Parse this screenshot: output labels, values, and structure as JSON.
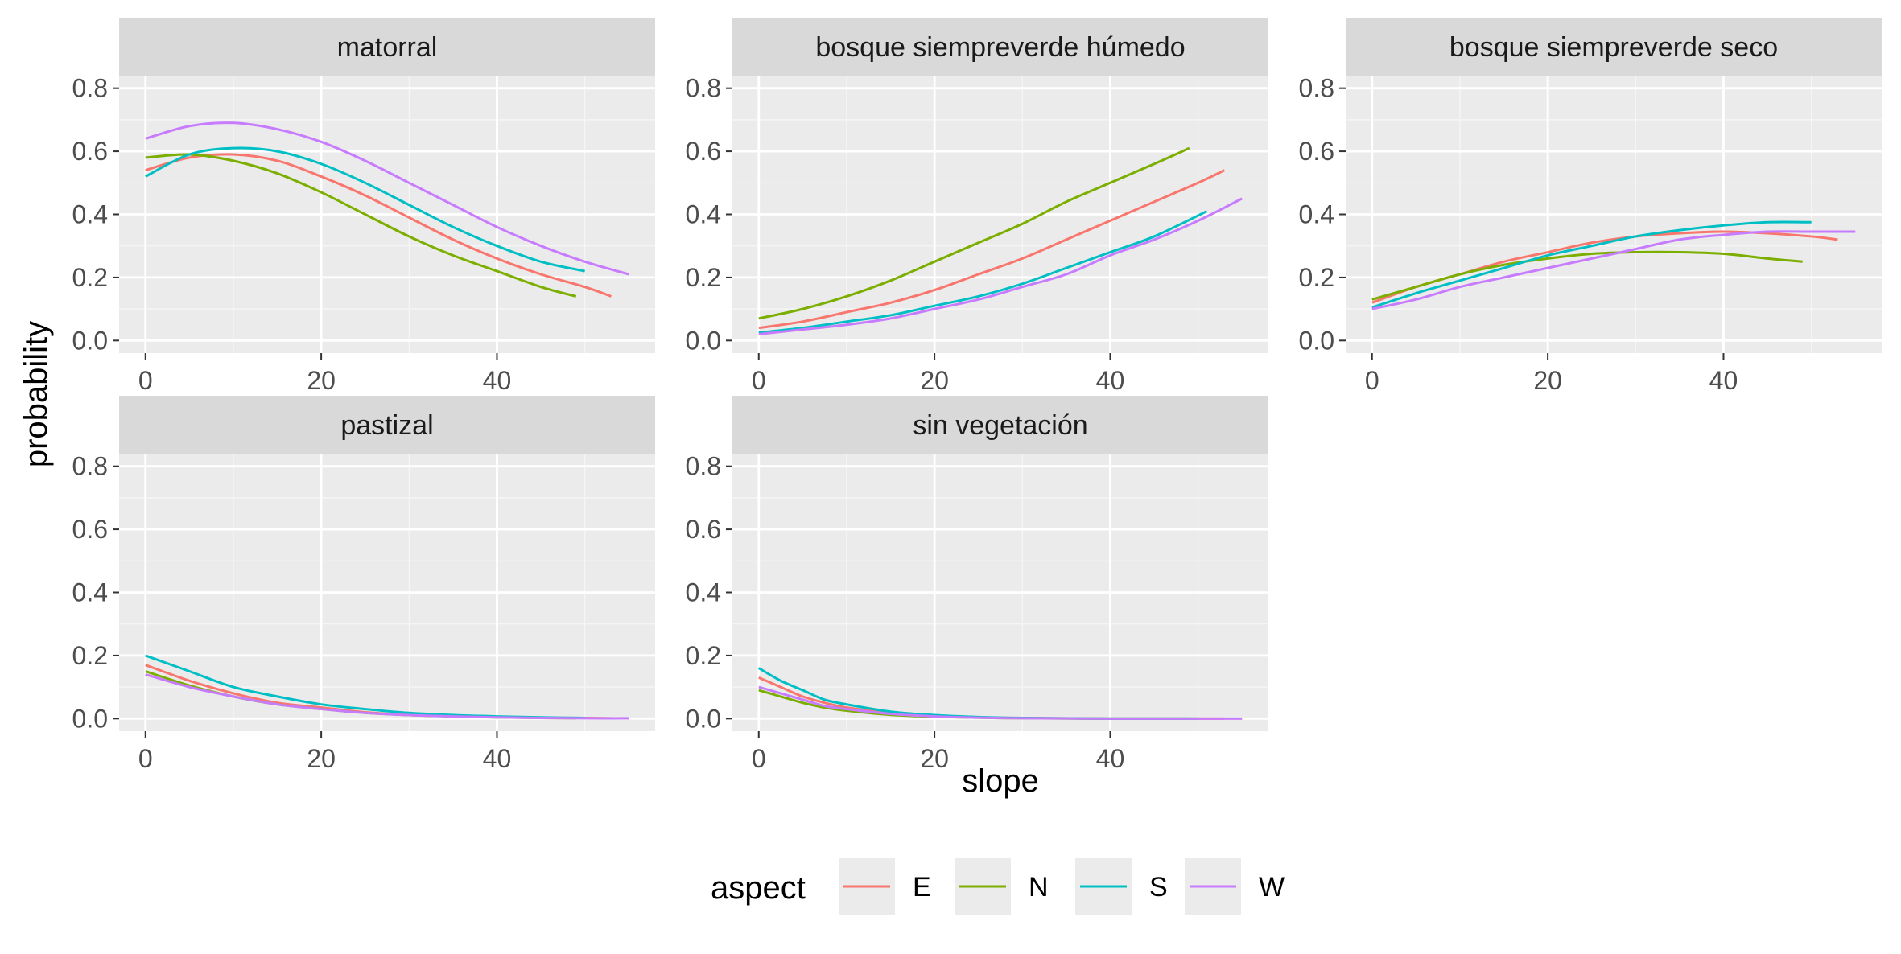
{
  "chart_data": {
    "type": "line",
    "xlabel": "slope",
    "ylabel": "probability",
    "xlim": [
      -3,
      58
    ],
    "ylim": [
      -0.04,
      0.84
    ],
    "x_ticks": [
      0,
      20,
      40
    ],
    "x_tick_labels": [
      "0",
      "20",
      "40"
    ],
    "y_ticks": [
      0.0,
      0.2,
      0.4,
      0.6,
      0.8
    ],
    "y_tick_labels": [
      "0.0",
      "0.2",
      "0.4",
      "0.6",
      "0.8"
    ],
    "grid": true,
    "legend": {
      "title": "aspect",
      "position": "bottom",
      "entries": [
        {
          "label": "E",
          "color": "#F8766D"
        },
        {
          "label": "N",
          "color": "#7CAE00"
        },
        {
          "label": "S",
          "color": "#00BFC4"
        },
        {
          "label": "W",
          "color": "#C77CFF"
        }
      ]
    },
    "facets": [
      {
        "title": "matorral",
        "series": [
          {
            "name": "E",
            "x": [
              0,
              5,
              10,
              15,
              20,
              25,
              30,
              35,
              40,
              45,
              50,
              53
            ],
            "y": [
              0.54,
              0.58,
              0.59,
              0.57,
              0.52,
              0.46,
              0.39,
              0.32,
              0.26,
              0.21,
              0.17,
              0.14
            ]
          },
          {
            "name": "N",
            "x": [
              0,
              5,
              10,
              15,
              20,
              25,
              30,
              35,
              40,
              45,
              49
            ],
            "y": [
              0.58,
              0.59,
              0.57,
              0.53,
              0.47,
              0.4,
              0.33,
              0.27,
              0.22,
              0.17,
              0.14
            ]
          },
          {
            "name": "S",
            "x": [
              0,
              5,
              10,
              15,
              20,
              25,
              30,
              35,
              40,
              45,
              50
            ],
            "y": [
              0.52,
              0.59,
              0.61,
              0.6,
              0.56,
              0.5,
              0.43,
              0.36,
              0.3,
              0.25,
              0.22
            ]
          },
          {
            "name": "W",
            "x": [
              0,
              5,
              10,
              15,
              20,
              25,
              30,
              35,
              40,
              45,
              50,
              55
            ],
            "y": [
              0.64,
              0.68,
              0.69,
              0.67,
              0.63,
              0.57,
              0.5,
              0.43,
              0.36,
              0.3,
              0.25,
              0.21
            ]
          }
        ]
      },
      {
        "title": "bosque siempreverde húmedo",
        "series": [
          {
            "name": "E",
            "x": [
              0,
              5,
              10,
              15,
              20,
              25,
              30,
              35,
              40,
              45,
              50,
              53
            ],
            "y": [
              0.04,
              0.06,
              0.09,
              0.12,
              0.16,
              0.21,
              0.26,
              0.32,
              0.38,
              0.44,
              0.5,
              0.54
            ]
          },
          {
            "name": "N",
            "x": [
              0,
              5,
              10,
              15,
              20,
              25,
              30,
              35,
              40,
              45,
              49
            ],
            "y": [
              0.07,
              0.1,
              0.14,
              0.19,
              0.25,
              0.31,
              0.37,
              0.44,
              0.5,
              0.56,
              0.61
            ]
          },
          {
            "name": "S",
            "x": [
              0,
              5,
              10,
              15,
              20,
              25,
              30,
              35,
              40,
              45,
              51
            ],
            "y": [
              0.025,
              0.04,
              0.06,
              0.08,
              0.11,
              0.14,
              0.18,
              0.23,
              0.28,
              0.33,
              0.41
            ]
          },
          {
            "name": "W",
            "x": [
              0,
              5,
              10,
              15,
              20,
              25,
              30,
              35,
              40,
              45,
              50,
              55
            ],
            "y": [
              0.02,
              0.035,
              0.05,
              0.07,
              0.1,
              0.13,
              0.17,
              0.21,
              0.27,
              0.32,
              0.38,
              0.45
            ]
          }
        ]
      },
      {
        "title": "bosque siempreverde seco",
        "series": [
          {
            "name": "E",
            "x": [
              0,
              5,
              10,
              15,
              20,
              25,
              30,
              35,
              40,
              45,
              50,
              53
            ],
            "y": [
              0.12,
              0.17,
              0.21,
              0.25,
              0.28,
              0.31,
              0.33,
              0.34,
              0.345,
              0.34,
              0.33,
              0.32
            ]
          },
          {
            "name": "N",
            "x": [
              0,
              5,
              10,
              15,
              20,
              25,
              30,
              35,
              40,
              45,
              49
            ],
            "y": [
              0.13,
              0.17,
              0.21,
              0.24,
              0.26,
              0.275,
              0.28,
              0.28,
              0.275,
              0.26,
              0.25
            ]
          },
          {
            "name": "S",
            "x": [
              0,
              5,
              10,
              15,
              20,
              25,
              30,
              35,
              40,
              45,
              50
            ],
            "y": [
              0.105,
              0.15,
              0.19,
              0.23,
              0.27,
              0.3,
              0.33,
              0.35,
              0.365,
              0.375,
              0.375
            ]
          },
          {
            "name": "W",
            "x": [
              0,
              5,
              10,
              15,
              20,
              25,
              30,
              35,
              40,
              45,
              50,
              55
            ],
            "y": [
              0.1,
              0.13,
              0.17,
              0.2,
              0.23,
              0.26,
              0.29,
              0.32,
              0.335,
              0.345,
              0.345,
              0.345
            ]
          }
        ]
      },
      {
        "title": "pastizal",
        "series": [
          {
            "name": "E",
            "x": [
              0,
              5,
              10,
              15,
              20,
              25,
              30,
              35,
              40,
              45,
              50,
              53
            ],
            "y": [
              0.17,
              0.12,
              0.08,
              0.05,
              0.035,
              0.02,
              0.012,
              0.008,
              0.005,
              0.003,
              0.002,
              0.001
            ]
          },
          {
            "name": "N",
            "x": [
              0,
              5,
              10,
              15,
              20,
              25,
              30,
              35,
              40,
              45,
              49
            ],
            "y": [
              0.15,
              0.105,
              0.07,
              0.045,
              0.03,
              0.018,
              0.011,
              0.007,
              0.004,
              0.002,
              0.001
            ]
          },
          {
            "name": "S",
            "x": [
              0,
              5,
              10,
              15,
              20,
              25,
              30,
              35,
              40,
              45,
              50
            ],
            "y": [
              0.2,
              0.15,
              0.1,
              0.07,
              0.045,
              0.03,
              0.018,
              0.011,
              0.007,
              0.004,
              0.002
            ]
          },
          {
            "name": "W",
            "x": [
              0,
              5,
              10,
              15,
              20,
              25,
              30,
              35,
              40,
              45,
              50,
              55
            ],
            "y": [
              0.14,
              0.1,
              0.07,
              0.045,
              0.03,
              0.018,
              0.011,
              0.007,
              0.004,
              0.002,
              0.001,
              0.001
            ]
          }
        ]
      },
      {
        "title": "sin vegetación",
        "series": [
          {
            "name": "E",
            "x": [
              0,
              2.5,
              5,
              7.5,
              10,
              15,
              20,
              25,
              30,
              40,
              53
            ],
            "y": [
              0.13,
              0.1,
              0.07,
              0.05,
              0.035,
              0.018,
              0.008,
              0.004,
              0.002,
              0.0,
              0.0
            ]
          },
          {
            "name": "N",
            "x": [
              0,
              2.5,
              5,
              7.5,
              10,
              15,
              20,
              25,
              30,
              40,
              49
            ],
            "y": [
              0.09,
              0.07,
              0.05,
              0.035,
              0.025,
              0.012,
              0.006,
              0.003,
              0.001,
              0.0,
              0.0
            ]
          },
          {
            "name": "S",
            "x": [
              0,
              2.5,
              5,
              7.5,
              10,
              15,
              20,
              25,
              30,
              40,
              50
            ],
            "y": [
              0.16,
              0.12,
              0.09,
              0.06,
              0.045,
              0.022,
              0.011,
              0.005,
              0.002,
              0.0,
              0.0
            ]
          },
          {
            "name": "W",
            "x": [
              0,
              2.5,
              5,
              7.5,
              10,
              15,
              20,
              25,
              30,
              40,
              55
            ],
            "y": [
              0.1,
              0.08,
              0.06,
              0.04,
              0.03,
              0.015,
              0.007,
              0.003,
              0.001,
              0.0,
              0.0
            ]
          }
        ]
      }
    ]
  }
}
